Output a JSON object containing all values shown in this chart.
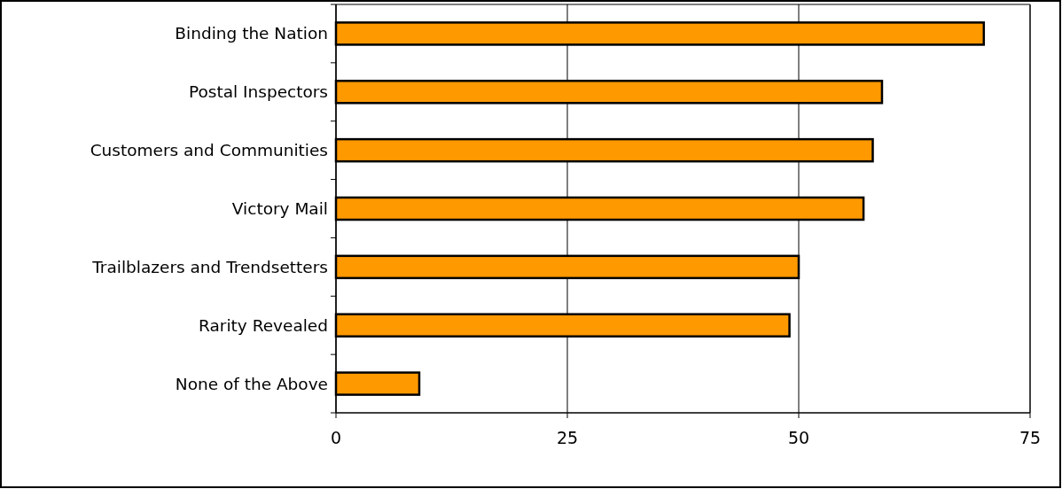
{
  "chart_data": {
    "type": "bar",
    "orientation": "horizontal",
    "categories": [
      "Binding the Nation",
      "Postal Inspectors",
      "Customers and Communities",
      "Victory Mail",
      "Trailblazers and Trendsetters",
      "Rarity Revealed",
      "None of the Above"
    ],
    "values": [
      70,
      59,
      58,
      57,
      50,
      49,
      9
    ],
    "color": "#ff9900",
    "xlim": [
      0,
      75
    ],
    "xticks": [
      0,
      25,
      50,
      75
    ],
    "grid": "x"
  }
}
